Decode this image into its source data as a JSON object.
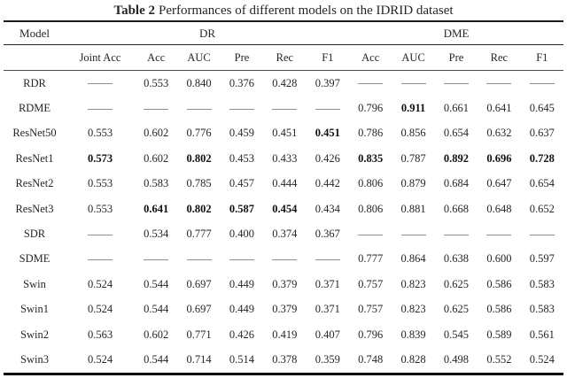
{
  "table": {
    "title_prefix": "Table 2",
    "title_rest": "Performances of different models on the IDRID dataset",
    "groups": {
      "model": "Model",
      "dr": "DR",
      "dme": "DME"
    },
    "columns": [
      "Joint Acc",
      "Acc",
      "AUC",
      "Pre",
      "Rec",
      "F1",
      "Acc",
      "AUC",
      "Pre",
      "Rec",
      "F1"
    ],
    "dash_symbol": "—",
    "rows": [
      {
        "model": "RDR",
        "values": [
          "—",
          "0.553",
          "0.840",
          "0.376",
          "0.428",
          "0.397",
          "—",
          "—",
          "—",
          "—",
          "—"
        ],
        "bold": []
      },
      {
        "model": "RDME",
        "values": [
          "—",
          "—",
          "—",
          "—",
          "—",
          "—",
          "0.796",
          "0.911",
          "0.661",
          "0.641",
          "0.645"
        ],
        "bold": [
          7
        ]
      },
      {
        "model": "ResNet50",
        "values": [
          "0.553",
          "0.602",
          "0.776",
          "0.459",
          "0.451",
          "0.451",
          "0.786",
          "0.856",
          "0.654",
          "0.632",
          "0.637"
        ],
        "bold": [
          5
        ]
      },
      {
        "model": "ResNet1",
        "values": [
          "0.573",
          "0.602",
          "0.802",
          "0.453",
          "0.433",
          "0.426",
          "0.835",
          "0.787",
          "0.892",
          "0.696",
          "0.728"
        ],
        "bold": [
          0,
          2,
          6,
          8,
          9,
          10
        ]
      },
      {
        "model": "ResNet2",
        "values": [
          "0.553",
          "0.583",
          "0.785",
          "0.457",
          "0.444",
          "0.442",
          "0.806",
          "0.879",
          "0.684",
          "0.647",
          "0.654"
        ],
        "bold": []
      },
      {
        "model": "ResNet3",
        "values": [
          "0.553",
          "0.641",
          "0.802",
          "0.587",
          "0.454",
          "0.434",
          "0.806",
          "0.881",
          "0.668",
          "0.648",
          "0.652"
        ],
        "bold": [
          1,
          2,
          3,
          4
        ]
      },
      {
        "model": "SDR",
        "values": [
          "—",
          "0.534",
          "0.777",
          "0.400",
          "0.374",
          "0.367",
          "—",
          "—",
          "—",
          "—",
          "—"
        ],
        "bold": []
      },
      {
        "model": "SDME",
        "values": [
          "—",
          "—",
          "—",
          "—",
          "—",
          "—",
          "0.777",
          "0.864",
          "0.638",
          "0.600",
          "0.597"
        ],
        "bold": []
      },
      {
        "model": "Swin",
        "values": [
          "0.524",
          "0.544",
          "0.697",
          "0.449",
          "0.379",
          "0.371",
          "0.757",
          "0.823",
          "0.625",
          "0.586",
          "0.583"
        ],
        "bold": []
      },
      {
        "model": "Swin1",
        "values": [
          "0.524",
          "0.544",
          "0.697",
          "0.449",
          "0.379",
          "0.371",
          "0.757",
          "0.823",
          "0.625",
          "0.586",
          "0.583"
        ],
        "bold": []
      },
      {
        "model": "Swin2",
        "values": [
          "0.563",
          "0.602",
          "0.771",
          "0.426",
          "0.419",
          "0.407",
          "0.796",
          "0.839",
          "0.545",
          "0.589",
          "0.561"
        ],
        "bold": []
      },
      {
        "model": "Swin3",
        "values": [
          "0.524",
          "0.544",
          "0.714",
          "0.514",
          "0.378",
          "0.359",
          "0.748",
          "0.828",
          "0.498",
          "0.552",
          "0.524"
        ],
        "bold": []
      }
    ]
  }
}
